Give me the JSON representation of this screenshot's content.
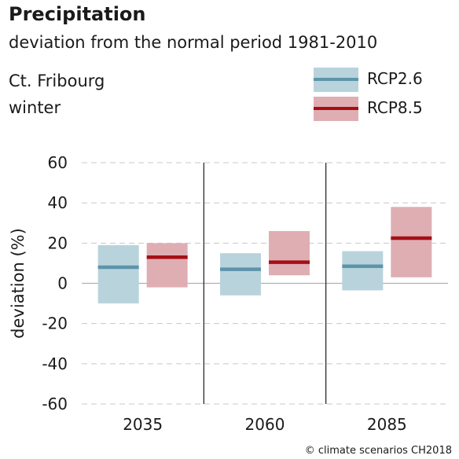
{
  "header": {
    "title": "Precipitation",
    "subtitle": "deviation from the normal period 1981-2010",
    "region": "Ct. Fribourg",
    "season": "winter"
  },
  "legend": [
    {
      "label": "RCP2.6",
      "fill": "#b9d3dc",
      "line": "#5d94aa"
    },
    {
      "label": "RCP8.5",
      "fill": "#dfaeb2",
      "line": "#a50f15"
    }
  ],
  "credit": "© climate scenarios CH2018",
  "chart_data": {
    "type": "bar",
    "title": "Precipitation",
    "subtitle": "deviation from the normal period 1981-2010",
    "ylabel": "deviation (%)",
    "ylim": [
      -60,
      60
    ],
    "yticks": [
      60,
      40,
      20,
      0,
      -20,
      -40,
      -60
    ],
    "categories": [
      "2035",
      "2060",
      "2085"
    ],
    "grid": "horizontal dashed",
    "legend_position": "top-right",
    "series": [
      {
        "name": "RCP2.6",
        "fill_color": "#b9d3dc",
        "median_color": "#5d94aa",
        "low": [
          -10,
          -6,
          -3.5
        ],
        "median": [
          8,
          7,
          8.5
        ],
        "high": [
          19,
          15,
          16
        ]
      },
      {
        "name": "RCP8.5",
        "fill_color": "#dfaeb2",
        "median_color": "#a50f15",
        "low": [
          -2,
          4,
          3
        ],
        "median": [
          13,
          10.5,
          22.5
        ],
        "high": [
          20,
          26,
          38
        ]
      }
    ]
  }
}
